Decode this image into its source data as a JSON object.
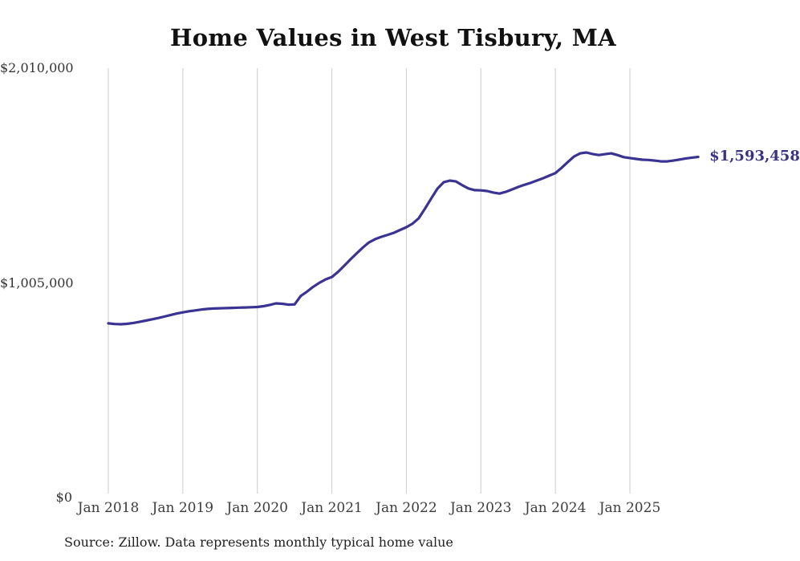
{
  "chart": {
    "title": "Home Values in West Tisbury, MA",
    "source_note": "Source: Zillow. Data represents monthly typical home value",
    "end_label": "$1,593,458"
  },
  "chart_data": {
    "type": "line",
    "title": "Home Values in West Tisbury, MA",
    "series_name": "Monthly typical home value",
    "x": [
      "2018-01",
      "2018-02",
      "2018-03",
      "2018-04",
      "2018-05",
      "2018-06",
      "2018-07",
      "2018-08",
      "2018-09",
      "2018-10",
      "2018-11",
      "2018-12",
      "2019-01",
      "2019-02",
      "2019-03",
      "2019-04",
      "2019-05",
      "2019-06",
      "2019-07",
      "2019-08",
      "2019-09",
      "2019-10",
      "2019-11",
      "2019-12",
      "2020-01",
      "2020-02",
      "2020-03",
      "2020-04",
      "2020-05",
      "2020-06",
      "2020-07",
      "2020-08",
      "2020-09",
      "2020-10",
      "2020-11",
      "2020-12",
      "2021-01",
      "2021-02",
      "2021-03",
      "2021-04",
      "2021-05",
      "2021-06",
      "2021-07",
      "2021-08",
      "2021-09",
      "2021-10",
      "2021-11",
      "2021-12",
      "2022-01",
      "2022-02",
      "2022-03",
      "2022-04",
      "2022-05",
      "2022-06",
      "2022-07",
      "2022-08",
      "2022-09",
      "2022-10",
      "2022-11",
      "2022-12",
      "2023-01",
      "2023-02",
      "2023-03",
      "2023-04",
      "2023-05",
      "2023-06",
      "2023-07",
      "2023-08",
      "2023-09",
      "2023-10",
      "2023-11",
      "2023-12",
      "2024-01",
      "2024-02",
      "2024-03",
      "2024-04",
      "2024-05",
      "2024-06",
      "2024-07",
      "2024-08",
      "2024-09",
      "2024-10",
      "2024-11",
      "2024-12",
      "2025-01",
      "2025-02",
      "2025-03",
      "2025-04",
      "2025-05",
      "2025-06",
      "2025-07",
      "2025-08",
      "2025-09",
      "2025-10",
      "2025-11",
      "2025-12"
    ],
    "values": [
      811000,
      808000,
      807000,
      809000,
      813000,
      818000,
      824000,
      830000,
      836000,
      843000,
      850000,
      857000,
      863000,
      868000,
      872000,
      876000,
      879000,
      881000,
      882000,
      883000,
      884000,
      885000,
      886000,
      887000,
      888000,
      892000,
      898000,
      905000,
      903000,
      899000,
      900000,
      940000,
      960000,
      983000,
      1002000,
      1018000,
      1029000,
      1053000,
      1082000,
      1112000,
      1140000,
      1168000,
      1192000,
      1207000,
      1218000,
      1227000,
      1237000,
      1250000,
      1263000,
      1280000,
      1305000,
      1350000,
      1398000,
      1444000,
      1474000,
      1482000,
      1478000,
      1460000,
      1445000,
      1437000,
      1436000,
      1433000,
      1426000,
      1421000,
      1429000,
      1440000,
      1452000,
      1462000,
      1471000,
      1482000,
      1493000,
      1505000,
      1517000,
      1542000,
      1569000,
      1595000,
      1610000,
      1614000,
      1607000,
      1602000,
      1606000,
      1610000,
      1602000,
      1592000,
      1588000,
      1584000,
      1580000,
      1579000,
      1576000,
      1572000,
      1572000,
      1576000,
      1581000,
      1586000,
      1590000,
      1593458
    ],
    "latest_value": 1593458,
    "end_label": "$1,593,458",
    "x_ticks": [
      "Jan 2018",
      "Jan 2019",
      "Jan 2020",
      "Jan 2021",
      "Jan 2022",
      "Jan 2023",
      "Jan 2024",
      "Jan 2025"
    ],
    "y_ticks": [
      "$0",
      "$1,005,000",
      "$2,010,000"
    ],
    "ylim": [
      0,
      2010000
    ],
    "grid": "vertical",
    "legend": "none",
    "line_color": "#3b3392",
    "grid_color": "#cccccc",
    "source": "Source: Zillow. Data represents monthly typical home value"
  }
}
